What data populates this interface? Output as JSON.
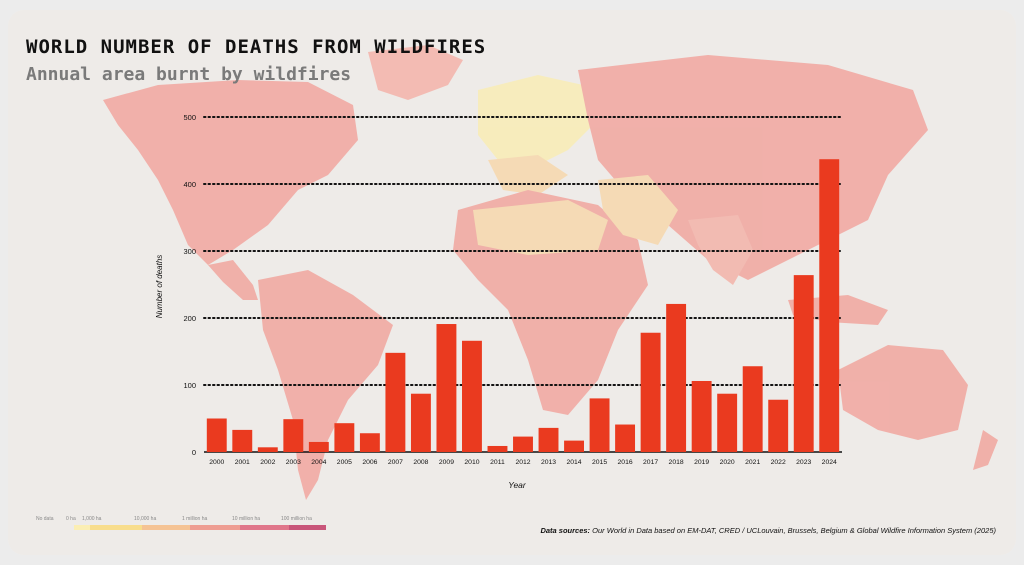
{
  "header": {
    "title": "WORLD NUMBER OF DEATHS FROM WILDFIRES",
    "subtitle": "Annual area burnt by wildfires"
  },
  "legend": {
    "items": [
      {
        "label": "No data",
        "color": "#ffffff"
      },
      {
        "label": "0 ha",
        "color": "#fbeeb3"
      },
      {
        "label": "1,000 ha",
        "color": "#f8dd8c"
      },
      {
        "label": "10,000 ha",
        "color": "#f5c394"
      },
      {
        "label": "1 million ha",
        "color": "#ee9d92"
      },
      {
        "label": "10 million ha",
        "color": "#e0768a"
      },
      {
        "label": "100 million ha",
        "color": "#c9567a"
      }
    ]
  },
  "sources": {
    "label": "Data sources:",
    "text": "Our World in Data based on EM-DAT, CRED / UCLouvain, Brussels, Belgium & Global Wildfire Information System (2025)"
  },
  "colors": {
    "bar": "#ea3a1f",
    "map_land": "#f1a9a2",
    "map_land_light": "#f6d9b0",
    "map_land_yellow": "#f8edb8"
  },
  "chart_data": {
    "type": "bar",
    "title": "WORLD NUMBER OF DEATHS FROM WILDFIRES",
    "xlabel": "Year",
    "ylabel": "Number of deaths",
    "ylim": [
      0,
      500
    ],
    "yticks": [
      0,
      100,
      200,
      300,
      400,
      500
    ],
    "grid": "horizontal dotted",
    "categories": [
      "2000",
      "2001",
      "2002",
      "2003",
      "2004",
      "2005",
      "2006",
      "2007",
      "2008",
      "2009",
      "2010",
      "2011",
      "2012",
      "2013",
      "2014",
      "2015",
      "2016",
      "2017",
      "2018",
      "2019",
      "2020",
      "2021",
      "2022",
      "2023",
      "2024"
    ],
    "values": [
      50,
      33,
      7,
      49,
      15,
      43,
      28,
      148,
      87,
      191,
      166,
      9,
      23,
      36,
      17,
      80,
      41,
      178,
      221,
      106,
      87,
      128,
      78,
      264,
      437
    ]
  }
}
